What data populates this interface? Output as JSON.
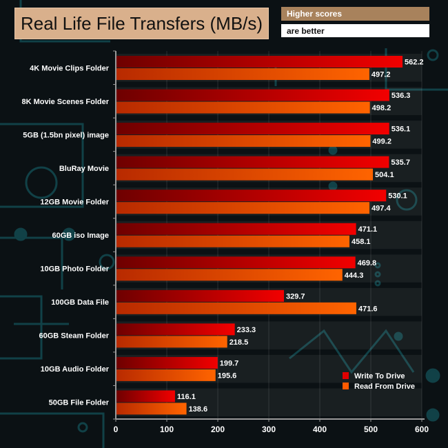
{
  "colors": {
    "write": "#e60000",
    "read": "#ff5a00",
    "title_bg": "#d9b08c",
    "note_bg": "#a8825c"
  },
  "chart_data": {
    "type": "bar",
    "orientation": "horizontal",
    "title": "Real Life File Transfers (MB/s)",
    "note_line1": "Higher scores",
    "note_line2": "are better",
    "categories": [
      "4K Movie Clips Folder",
      "8K Movie Scenes Folder",
      "5GB (1.5bn pixel) image",
      "BluRay Movie",
      "12GB Movie Folder",
      "60GB iso Image",
      "10GB Photo Folder",
      "100GB Data File",
      "60GB Steam Folder",
      "10GB Audio Folder",
      "50GB File Folder"
    ],
    "series": [
      {
        "name": "Write To  Drive",
        "values": [
          562.2,
          536.3,
          536.1,
          535.7,
          530.1,
          471.1,
          469.8,
          329.7,
          233.3,
          199.7,
          116.1
        ]
      },
      {
        "name": "Read From  Drive",
        "values": [
          497.2,
          498.2,
          499.2,
          504.1,
          497.4,
          458.1,
          444.3,
          471.6,
          218.5,
          195.6,
          138.6
        ]
      }
    ],
    "xlim": [
      0,
      600
    ],
    "xticks": [
      "0",
      "100",
      "200",
      "300",
      "400",
      "500",
      "600"
    ],
    "legend_position": "bottom-right"
  }
}
